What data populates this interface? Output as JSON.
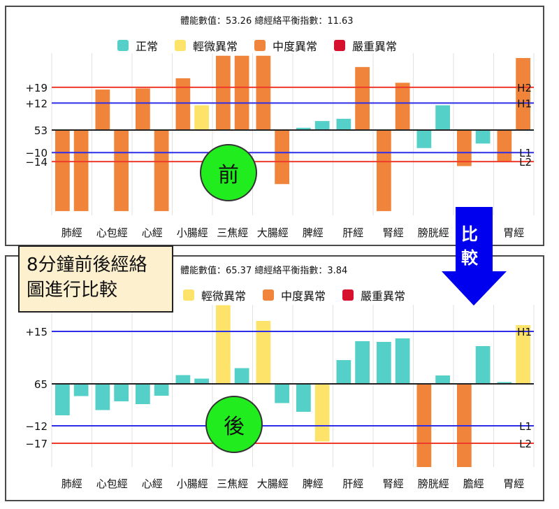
{
  "annotation": {
    "line1": "8分鐘前後經絡",
    "line2": "圖進行比較"
  },
  "compare_arrow": {
    "label_top": "比",
    "label_bottom": "較",
    "color": "#0000ee"
  },
  "colors": {
    "normal": "#55d0c8",
    "mild": "#fde36a",
    "moderate": "#f0843a",
    "severe": "#d6112e",
    "high_line": "#ef3b2c",
    "low_line": "#2e2ee6",
    "badge": "#20ec1e"
  },
  "before": {
    "info": "體能數值：53.26 總經絡平衡指數：11.63",
    "badge": "前",
    "legend": [
      {
        "label": "正常",
        "color": "#55d0c8"
      },
      {
        "label": "輕微異常",
        "color": "#fde36a"
      },
      {
        "label": "中度異常",
        "color": "#f0843a"
      },
      {
        "label": "嚴重異常",
        "color": "#d6112e"
      }
    ],
    "yticks": {
      "h2": "+19",
      "h1": "+12",
      "base": "53",
      "l1": "−10",
      "l2": "−14"
    },
    "line_labels": {
      "h2": "H2",
      "h1": "H1",
      "l1": "L1",
      "l2": "L2"
    },
    "xlabels": [
      "肺經",
      "心包經",
      "心經",
      "小腸經",
      "三焦經",
      "大腸經",
      "脾經",
      "肝經",
      "腎經",
      "膀胱經",
      "",
      "胃經"
    ]
  },
  "after": {
    "info": "體能數值：65.37 總經絡平衡指數：3.84",
    "badge": "後",
    "legend": [
      {
        "label": "輕微異常",
        "color": "#fde36a"
      },
      {
        "label": "中度異常",
        "color": "#f0843a"
      },
      {
        "label": "嚴重異常",
        "color": "#d6112e"
      }
    ],
    "yticks": {
      "h1": "+15",
      "base": "65",
      "l1": "−12",
      "l2": "−17"
    },
    "line_labels": {
      "h1": "H1",
      "l1": "L1",
      "l2": "L2"
    },
    "xlabels": [
      "肺經",
      "心包經",
      "心經",
      "小腸經",
      "三焦經",
      "大腸經",
      "脾經",
      "肝經",
      "腎經",
      "膀胱經",
      "膽經",
      "胃經"
    ]
  },
  "chart_data": [
    {
      "type": "bar",
      "title": "體能數值：53.26 總經絡平衡指數：11.63",
      "categories": [
        "肺經",
        "心包經",
        "心經",
        "小腸經",
        "三焦經",
        "大腸經",
        "脾經",
        "肝經",
        "腎經",
        "膀胱經",
        "膽經",
        "胃經"
      ],
      "series_note": "two bars per meridian (left/right), values are deviation from baseline 53",
      "baseline": 53,
      "reference_lines": {
        "H2": 19,
        "H1": 12,
        "L1": -10,
        "L2": -14
      },
      "values": [
        -36,
        -36,
        18,
        -36,
        18.5,
        -36,
        23,
        11,
        33,
        33,
        33,
        -24,
        1,
        4,
        5,
        28,
        -36,
        21,
        -8,
        11,
        -16,
        -6,
        -14,
        32
      ],
      "status": [
        "moderate",
        "moderate",
        "moderate",
        "moderate",
        "moderate",
        "moderate",
        "moderate",
        "mild",
        "moderate",
        "moderate",
        "moderate",
        "moderate",
        "normal",
        "normal",
        "normal",
        "moderate",
        "moderate",
        "moderate",
        "normal",
        "normal",
        "moderate",
        "normal",
        "moderate",
        "moderate"
      ],
      "legend": [
        "正常",
        "輕微異常",
        "中度異常",
        "嚴重異常"
      ],
      "xlabel": "",
      "ylabel": "",
      "ylim": [
        -36,
        33
      ]
    },
    {
      "type": "bar",
      "title": "體能數值：65.37 總經絡平衡指數：3.84",
      "categories": [
        "肺經",
        "心包經",
        "心經",
        "小腸經",
        "三焦經",
        "大腸經",
        "脾經",
        "肝經",
        "腎經",
        "膀胱經",
        "膽經",
        "胃經"
      ],
      "series_note": "two bars per meridian (left/right), values are deviation from baseline 65",
      "baseline": 65,
      "reference_lines": {
        "H1": 15,
        "L1": -12,
        "L2": -17
      },
      "values": [
        -9,
        -3.5,
        -7.5,
        -5,
        -5.8,
        -3.4,
        2.5,
        1.5,
        22.5,
        4.5,
        18,
        -5.5,
        -8,
        -16.5,
        6.8,
        12.2,
        12,
        13,
        -26,
        2.4,
        -26,
        10.8,
        0.5,
        16.8
      ],
      "status": [
        "normal",
        "normal",
        "normal",
        "normal",
        "normal",
        "normal",
        "normal",
        "normal",
        "mild",
        "normal",
        "mild",
        "normal",
        "normal",
        "mild",
        "normal",
        "normal",
        "normal",
        "normal",
        "moderate",
        "normal",
        "moderate",
        "normal",
        "normal",
        "mild"
      ],
      "legend": [
        "輕微異常",
        "中度異常",
        "嚴重異常"
      ],
      "xlabel": "",
      "ylabel": "",
      "ylim": [
        -26,
        23
      ]
    }
  ]
}
